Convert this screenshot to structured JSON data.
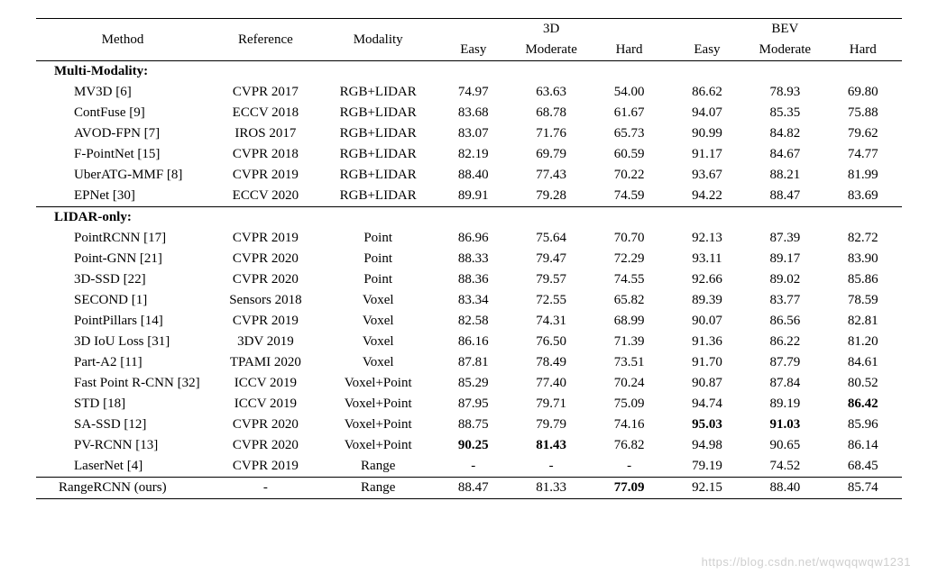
{
  "columns": {
    "method": "Method",
    "reference": "Reference",
    "modality": "Modality",
    "group_3d": "3D",
    "group_bev": "BEV",
    "easy": "Easy",
    "moderate": "Moderate",
    "hard": "Hard"
  },
  "sections": {
    "multi": "Multi-Modality:",
    "lidar": "LIDAR-only:"
  },
  "multi_rows": [
    {
      "method": "MV3D [6]",
      "reference": "CVPR 2017",
      "modality": "RGB+LIDAR",
      "e3": "74.97",
      "m3": "63.63",
      "h3": "54.00",
      "eb": "86.62",
      "mb": "78.93",
      "hb": "69.80"
    },
    {
      "method": "ContFuse [9]",
      "reference": "ECCV 2018",
      "modality": "RGB+LIDAR",
      "e3": "83.68",
      "m3": "68.78",
      "h3": "61.67",
      "eb": "94.07",
      "mb": "85.35",
      "hb": "75.88"
    },
    {
      "method": "AVOD-FPN [7]",
      "reference": "IROS 2017",
      "modality": "RGB+LIDAR",
      "e3": "83.07",
      "m3": "71.76",
      "h3": "65.73",
      "eb": "90.99",
      "mb": "84.82",
      "hb": "79.62"
    },
    {
      "method": "F-PointNet [15]",
      "reference": "CVPR 2018",
      "modality": "RGB+LIDAR",
      "e3": "82.19",
      "m3": "69.79",
      "h3": "60.59",
      "eb": "91.17",
      "mb": "84.67",
      "hb": "74.77"
    },
    {
      "method": "UberATG-MMF [8]",
      "reference": "CVPR 2019",
      "modality": "RGB+LIDAR",
      "e3": "88.40",
      "m3": "77.43",
      "h3": "70.22",
      "eb": "93.67",
      "mb": "88.21",
      "hb": "81.99"
    },
    {
      "method": "EPNet [30]",
      "reference": "ECCV 2020",
      "modality": "RGB+LIDAR",
      "e3": "89.91",
      "m3": "79.28",
      "h3": "74.59",
      "eb": "94.22",
      "mb": "88.47",
      "hb": "83.69"
    }
  ],
  "lidar_rows": [
    {
      "method": "PointRCNN [17]",
      "reference": "CVPR 2019",
      "modality": "Point",
      "e3": "86.96",
      "m3": "75.64",
      "h3": "70.70",
      "eb": "92.13",
      "mb": "87.39",
      "hb": "82.72"
    },
    {
      "method": "Point-GNN [21]",
      "reference": "CVPR 2020",
      "modality": "Point",
      "e3": "88.33",
      "m3": "79.47",
      "h3": "72.29",
      "eb": "93.11",
      "mb": "89.17",
      "hb": "83.90"
    },
    {
      "method": "3D-SSD [22]",
      "reference": "CVPR 2020",
      "modality": "Point",
      "e3": "88.36",
      "m3": "79.57",
      "h3": "74.55",
      "eb": "92.66",
      "mb": "89.02",
      "hb": "85.86"
    },
    {
      "method": "SECOND [1]",
      "reference": "Sensors 2018",
      "modality": "Voxel",
      "e3": "83.34",
      "m3": "72.55",
      "h3": "65.82",
      "eb": "89.39",
      "mb": "83.77",
      "hb": "78.59"
    },
    {
      "method": "PointPillars [14]",
      "reference": "CVPR 2019",
      "modality": "Voxel",
      "e3": "82.58",
      "m3": "74.31",
      "h3": "68.99",
      "eb": "90.07",
      "mb": "86.56",
      "hb": "82.81"
    },
    {
      "method": "3D IoU Loss [31]",
      "reference": "3DV 2019",
      "modality": "Voxel",
      "e3": "86.16",
      "m3": "76.50",
      "h3": "71.39",
      "eb": "91.36",
      "mb": "86.22",
      "hb": "81.20"
    },
    {
      "method": "Part-A2 [11]",
      "reference": "TPAMI 2020",
      "modality": "Voxel",
      "e3": "87.81",
      "m3": "78.49",
      "h3": "73.51",
      "eb": "91.70",
      "mb": "87.79",
      "hb": "84.61"
    },
    {
      "method": "Fast Point R-CNN [32]",
      "reference": "ICCV 2019",
      "modality": "Voxel+Point",
      "e3": "85.29",
      "m3": "77.40",
      "h3": "70.24",
      "eb": "90.87",
      "mb": "87.84",
      "hb": "80.52"
    },
    {
      "method": "STD [18]",
      "reference": "ICCV 2019",
      "modality": "Voxel+Point",
      "e3": "87.95",
      "m3": "79.71",
      "h3": "75.09",
      "eb": "94.74",
      "mb": "89.19",
      "hb": "86.42",
      "bold": [
        "hb"
      ]
    },
    {
      "method": "SA-SSD [12]",
      "reference": "CVPR 2020",
      "modality": "Voxel+Point",
      "e3": "88.75",
      "m3": "79.79",
      "h3": "74.16",
      "eb": "95.03",
      "mb": "91.03",
      "hb": "85.96",
      "bold": [
        "eb",
        "mb"
      ]
    },
    {
      "method": "PV-RCNN [13]",
      "reference": "CVPR 2020",
      "modality": "Voxel+Point",
      "e3": "90.25",
      "m3": "81.43",
      "h3": "76.82",
      "eb": "94.98",
      "mb": "90.65",
      "hb": "86.14",
      "bold": [
        "e3",
        "m3"
      ]
    },
    {
      "method": "LaserNet [4]",
      "reference": "CVPR 2019",
      "modality": "Range",
      "e3": "-",
      "m3": "-",
      "h3": "-",
      "eb": "79.19",
      "mb": "74.52",
      "hb": "68.45"
    }
  ],
  "final_row": {
    "method": "RangeRCNN (ours)",
    "reference": "-",
    "modality": "Range",
    "e3": "88.47",
    "m3": "81.33",
    "h3": "77.09",
    "eb": "92.15",
    "mb": "88.40",
    "hb": "85.74",
    "bold": [
      "h3"
    ]
  },
  "watermark": "https://blog.csdn.net/wqwqqwqw1231"
}
